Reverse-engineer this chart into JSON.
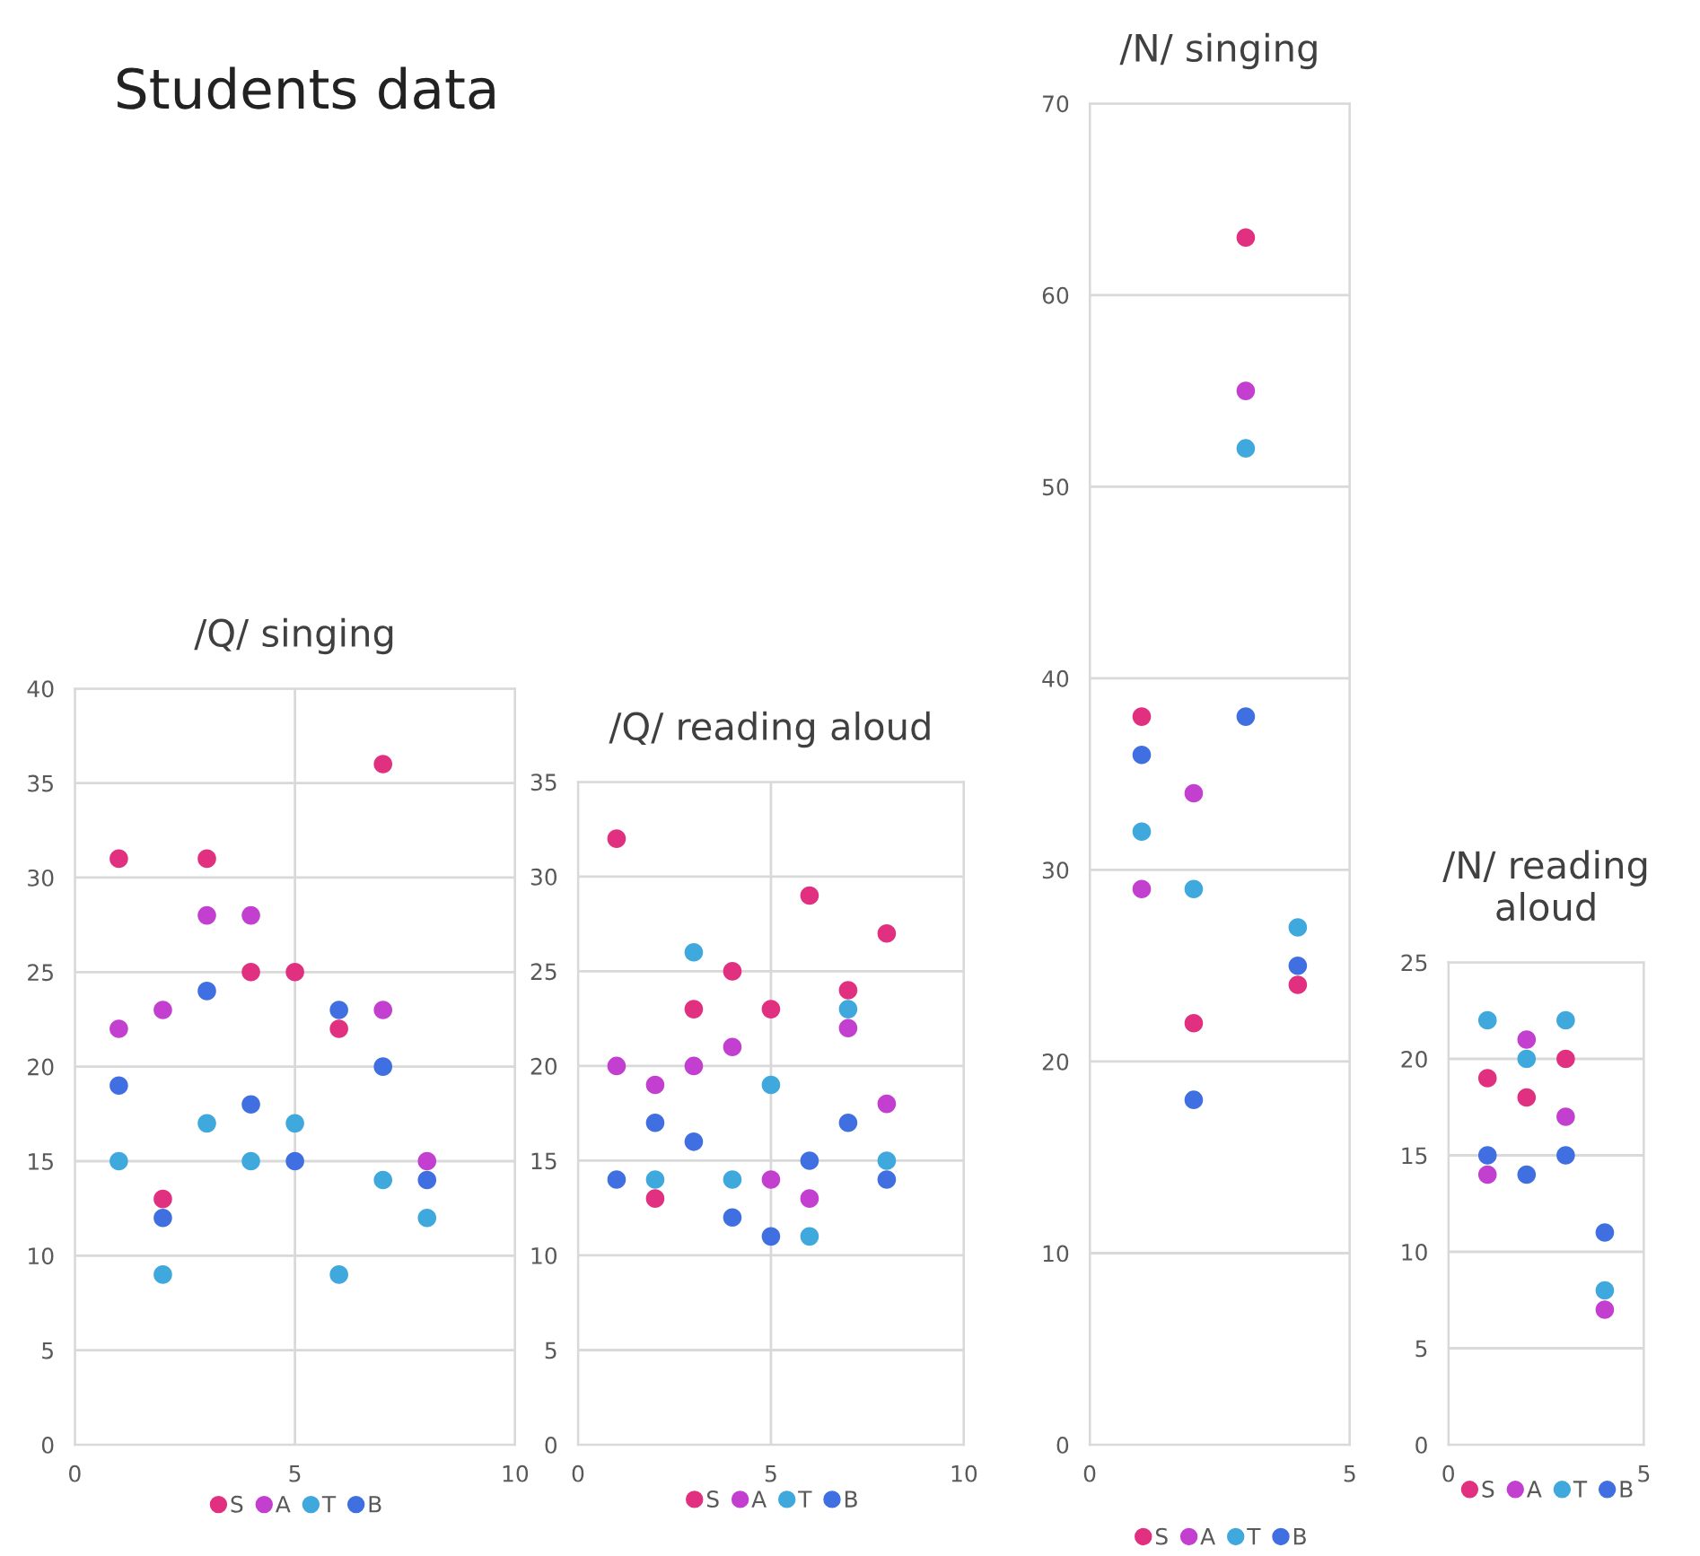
{
  "chart_data": [
    {
      "type": "scatter",
      "title": "/Q/ singing",
      "annotations": [
        "Students data"
      ],
      "x": [
        1,
        2,
        3,
        4,
        5,
        6,
        7,
        8
      ],
      "xlim": [
        0,
        10
      ],
      "xticks": [
        0,
        5,
        10
      ],
      "ylim": [
        0,
        40
      ],
      "yticks": [
        0,
        5,
        10,
        15,
        20,
        25,
        30,
        35,
        40
      ],
      "grid": true,
      "legend": "bottom",
      "marker": "circle",
      "series": [
        {
          "name": "S",
          "color": "#e0307f",
          "values": [
            31,
            13,
            31,
            25,
            25,
            22,
            36,
            null
          ]
        },
        {
          "name": "A",
          "color": "#c23fcf",
          "values": [
            22,
            23,
            28,
            28,
            null,
            null,
            23,
            15
          ]
        },
        {
          "name": "T",
          "color": "#3fa8dc",
          "values": [
            15,
            9,
            17,
            15,
            17,
            9,
            14,
            12
          ]
        },
        {
          "name": "B",
          "color": "#3f6fe0",
          "values": [
            19,
            12,
            24,
            18,
            15,
            23,
            20,
            14
          ]
        }
      ]
    },
    {
      "type": "scatter",
      "title": "/Q/ reading aloud",
      "x": [
        1,
        2,
        3,
        4,
        5,
        6,
        7,
        8
      ],
      "xlim": [
        0,
        10
      ],
      "xticks": [
        0,
        5,
        10
      ],
      "ylim": [
        0,
        35
      ],
      "yticks": [
        0,
        5,
        10,
        15,
        20,
        25,
        30,
        35
      ],
      "grid": true,
      "legend": "bottom",
      "marker": "circle",
      "series": [
        {
          "name": "S",
          "color": "#e0307f",
          "values": [
            32,
            13,
            23,
            25,
            23,
            29,
            24,
            27
          ]
        },
        {
          "name": "A",
          "color": "#c23fcf",
          "values": [
            20,
            19,
            20,
            21,
            14,
            13,
            22,
            18
          ]
        },
        {
          "name": "T",
          "color": "#3fa8dc",
          "values": [
            null,
            14,
            26,
            14,
            19,
            11,
            23,
            15
          ]
        },
        {
          "name": "B",
          "color": "#3f6fe0",
          "values": [
            14,
            17,
            16,
            12,
            11,
            15,
            17,
            14
          ]
        }
      ]
    },
    {
      "type": "scatter",
      "title": "/N/ singing",
      "x": [
        1,
        2,
        3,
        4
      ],
      "xlim": [
        0,
        5
      ],
      "xticks": [
        0,
        5
      ],
      "ylim": [
        0,
        70
      ],
      "yticks": [
        0,
        10,
        20,
        30,
        40,
        50,
        60,
        70
      ],
      "grid": true,
      "legend": "bottom",
      "marker": "circle",
      "series": [
        {
          "name": "S",
          "color": "#e0307f",
          "values": [
            38,
            22,
            63,
            24
          ]
        },
        {
          "name": "A",
          "color": "#c23fcf",
          "values": [
            29,
            34,
            55,
            null
          ]
        },
        {
          "name": "T",
          "color": "#3fa8dc",
          "values": [
            32,
            29,
            52,
            27
          ]
        },
        {
          "name": "B",
          "color": "#3f6fe0",
          "values": [
            36,
            18,
            38,
            25
          ]
        }
      ]
    },
    {
      "type": "scatter",
      "title": "/N/ reading aloud",
      "x": [
        1,
        2,
        3,
        4
      ],
      "xlim": [
        0,
        5
      ],
      "xticks": [
        0,
        5
      ],
      "ylim": [
        0,
        25
      ],
      "yticks": [
        0,
        5,
        10,
        15,
        20,
        25
      ],
      "grid": true,
      "legend": "bottom",
      "marker": "circle",
      "series": [
        {
          "name": "S",
          "color": "#e0307f",
          "values": [
            19,
            18,
            20,
            null
          ]
        },
        {
          "name": "A",
          "color": "#c23fcf",
          "values": [
            14,
            21,
            17,
            7
          ]
        },
        {
          "name": "T",
          "color": "#3fa8dc",
          "values": [
            22,
            20,
            22,
            8
          ]
        },
        {
          "name": "B",
          "color": "#3f6fe0",
          "values": [
            15,
            14,
            15,
            11
          ]
        }
      ]
    }
  ]
}
